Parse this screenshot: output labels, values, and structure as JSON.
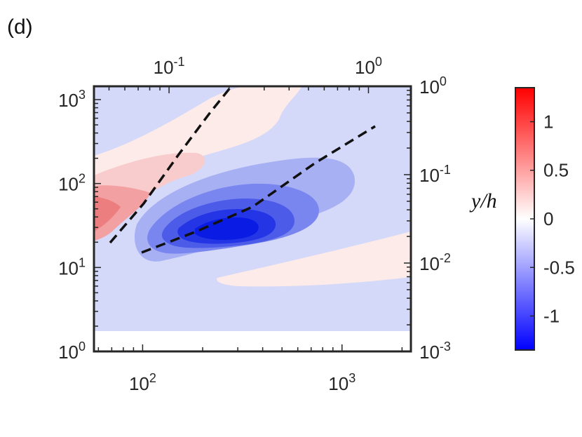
{
  "chart_data": {
    "type": "heatmap",
    "panel_label": "(d)",
    "x_axis": {
      "scale": "log",
      "ticks": [
        {
          "value": 100,
          "mantissa": "10",
          "exponent": "2"
        },
        {
          "value": 1000,
          "mantissa": "10",
          "exponent": "3"
        }
      ]
    },
    "y_axis": {
      "scale": "log",
      "ticks": [
        {
          "value": 1,
          "mantissa": "10",
          "exponent": "0"
        },
        {
          "value": 10,
          "mantissa": "10",
          "exponent": "1"
        },
        {
          "value": 100,
          "mantissa": "10",
          "exponent": "2"
        },
        {
          "value": 1000,
          "mantissa": "10",
          "exponent": "3"
        }
      ]
    },
    "top_axis": {
      "scale": "log",
      "ticks": [
        {
          "value": 0.1,
          "mantissa": "10",
          "exponent": "-1"
        },
        {
          "value": 1,
          "mantissa": "10",
          "exponent": "0"
        }
      ]
    },
    "right_axis": {
      "label": "y/h",
      "scale": "log",
      "ticks": [
        {
          "value": 0.001,
          "mantissa": "10",
          "exponent": "-3"
        },
        {
          "value": 0.01,
          "mantissa": "10",
          "exponent": "-2"
        },
        {
          "value": 0.1,
          "mantissa": "10",
          "exponent": "-1"
        },
        {
          "value": 1,
          "mantissa": "10",
          "exponent": "0"
        }
      ]
    },
    "colorbar": {
      "colormap": "blue-white-red",
      "range": [
        -1.35,
        1.35
      ],
      "ticks": [
        {
          "value": 1,
          "label": "1"
        },
        {
          "value": 0.5,
          "label": "0.5"
        },
        {
          "value": 0,
          "label": "0"
        },
        {
          "value": -0.5,
          "label": "-0.5"
        },
        {
          "value": -1,
          "label": "-1"
        }
      ],
      "colors": {
        "min": "#0000ff",
        "mid": "#ffffff",
        "max": "#ff0000"
      }
    },
    "grid": false,
    "dashed_lines": 2
  }
}
